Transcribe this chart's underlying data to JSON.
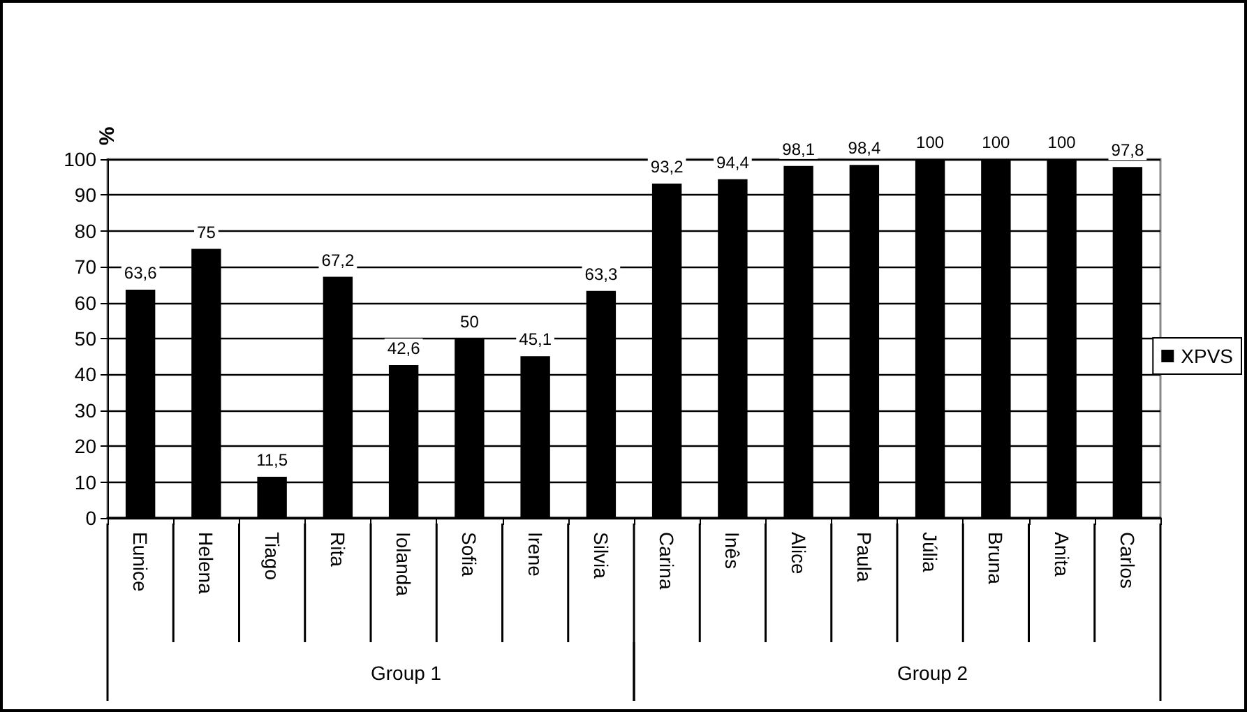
{
  "chart_data": {
    "type": "bar",
    "ylabel": "%",
    "categories": [
      "Eunice",
      "Helena",
      "Tiago",
      "Rita",
      "Iolanda",
      "Sofia",
      "Irene",
      "Silvia",
      "Carina",
      "Inês",
      "Alice",
      "Paula",
      "Júlia",
      "Bruna",
      "Anita",
      "Carlos"
    ],
    "series": [
      {
        "name": "XPVS",
        "color": "#000000",
        "values": [
          63.6,
          75,
          11.5,
          67.2,
          42.6,
          50,
          45.1,
          63.3,
          93.2,
          94.4,
          98.1,
          98.4,
          100,
          100,
          100,
          97.8
        ],
        "value_labels": [
          "63,6",
          "75",
          "11,5",
          "67,2",
          "42,6",
          "50",
          "45,1",
          "63,3",
          "93,2",
          "94,4",
          "98,1",
          "98,4",
          "100",
          "100",
          "100",
          "97,8"
        ]
      }
    ],
    "ylim": [
      0,
      100
    ],
    "yticks": [
      0,
      10,
      20,
      30,
      40,
      50,
      60,
      70,
      80,
      90,
      100
    ],
    "grid": "y",
    "legend": "right",
    "annotations": [
      "Group 1",
      "Group 2"
    ]
  }
}
